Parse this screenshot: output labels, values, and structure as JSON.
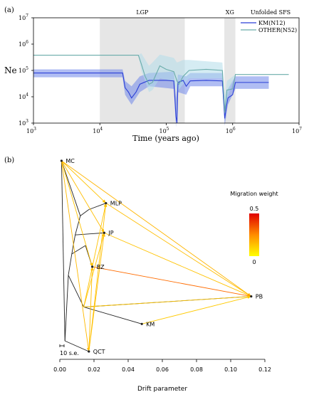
{
  "chart_data": [
    {
      "type": "line",
      "panel_label": "(a)",
      "xlabel": "Time (years ago)",
      "ylabel": "Ne",
      "x_scale": "log",
      "y_scale": "log",
      "xlim": [
        1000,
        10000000
      ],
      "ylim": [
        1000,
        10000000
      ],
      "x_ticks": [
        {
          "value": 1000,
          "base": "10",
          "exp": "3"
        },
        {
          "value": 10000,
          "base": "10",
          "exp": "4"
        },
        {
          "value": 100000,
          "base": "10",
          "exp": "5"
        },
        {
          "value": 1000000,
          "base": "10",
          "exp": "6"
        },
        {
          "value": 10000000,
          "base": "10",
          "exp": "7"
        }
      ],
      "y_ticks": [
        {
          "value": 1000,
          "base": "10",
          "exp": "3"
        },
        {
          "value": 10000,
          "base": "10",
          "exp": "4"
        },
        {
          "value": 100000,
          "base": "10",
          "exp": "5"
        },
        {
          "value": 1000000,
          "base": "10",
          "exp": "6"
        },
        {
          "value": 10000000,
          "base": "10",
          "exp": "7"
        }
      ],
      "annotation": "Unfolded SFS",
      "shaded_regions": [
        {
          "label": "LGP",
          "x": [
            10000,
            190000
          ]
        },
        {
          "label": "XG",
          "x": [
            750000,
            1100000
          ]
        }
      ],
      "legend_position": "top-right",
      "series": [
        {
          "name": "KM(N12)",
          "color": "#2b3fd6",
          "band_color": "#6f86ea",
          "points": [
            [
              1000,
              80000
            ],
            [
              22000,
              80000
            ],
            [
              24000,
              22000
            ],
            [
              27000,
              15000
            ],
            [
              30000,
              9000
            ],
            [
              35000,
              15000
            ],
            [
              40000,
              30000
            ],
            [
              55000,
              42000
            ],
            [
              100000,
              42000
            ],
            [
              130000,
              40000
            ],
            [
              140000,
              1800
            ],
            [
              145000,
              1000
            ],
            [
              150000,
              35000
            ],
            [
              180000,
              42000
            ],
            [
              200000,
              25000
            ],
            [
              230000,
              40000
            ],
            [
              400000,
              42000
            ],
            [
              700000,
              40000
            ],
            [
              760000,
              1500
            ],
            [
              800000,
              4000
            ],
            [
              850000,
              9000
            ],
            [
              1000000,
              12000
            ],
            [
              1100000,
              35000
            ],
            [
              3500000,
              35000
            ]
          ],
          "band_low": [
            [
              1000,
              55000
            ],
            [
              22000,
              55000
            ],
            [
              24000,
              12000
            ],
            [
              30000,
              5000
            ],
            [
              40000,
              15000
            ],
            [
              55000,
              25000
            ],
            [
              130000,
              20000
            ],
            [
              140000,
              700
            ],
            [
              150000,
              15000
            ],
            [
              200000,
              12000
            ],
            [
              230000,
              25000
            ],
            [
              700000,
              25000
            ],
            [
              760000,
              800
            ],
            [
              850000,
              5000
            ],
            [
              1100000,
              20000
            ],
            [
              3500000,
              20000
            ]
          ],
          "band_high": [
            [
              1000,
              110000
            ],
            [
              22000,
              110000
            ],
            [
              24000,
              40000
            ],
            [
              30000,
              25000
            ],
            [
              40000,
              60000
            ],
            [
              55000,
              80000
            ],
            [
              130000,
              90000
            ],
            [
              140000,
              9000
            ],
            [
              150000,
              70000
            ],
            [
              200000,
              60000
            ],
            [
              230000,
              80000
            ],
            [
              700000,
              80000
            ],
            [
              760000,
              5000
            ],
            [
              850000,
              20000
            ],
            [
              1100000,
              60000
            ],
            [
              3500000,
              60000
            ]
          ]
        },
        {
          "name": "OTHER(N52)",
          "color": "#6aacaa",
          "band_color": "#b3ddea",
          "points": [
            [
              1000,
              380000
            ],
            [
              38000,
              380000
            ],
            [
              42000,
              180000
            ],
            [
              48000,
              60000
            ],
            [
              55000,
              30000
            ],
            [
              62000,
              35000
            ],
            [
              70000,
              70000
            ],
            [
              80000,
              150000
            ],
            [
              100000,
              110000
            ],
            [
              130000,
              90000
            ],
            [
              145000,
              40000
            ],
            [
              155000,
              30000
            ],
            [
              180000,
              60000
            ],
            [
              220000,
              100000
            ],
            [
              400000,
              110000
            ],
            [
              700000,
              100000
            ],
            [
              760000,
              2500
            ],
            [
              820000,
              18000
            ],
            [
              1000000,
              20000
            ],
            [
              1100000,
              70000
            ],
            [
              7000000,
              70000
            ]
          ],
          "band_low": [
            [
              1000,
              380000
            ],
            [
              38000,
              380000
            ],
            [
              42000,
              100000
            ],
            [
              55000,
              15000
            ],
            [
              62000,
              18000
            ],
            [
              80000,
              50000
            ],
            [
              130000,
              40000
            ],
            [
              145000,
              15000
            ],
            [
              180000,
              30000
            ],
            [
              220000,
              50000
            ],
            [
              700000,
              50000
            ],
            [
              760000,
              1500
            ],
            [
              820000,
              8000
            ],
            [
              1100000,
              70000
            ],
            [
              7000000,
              70000
            ]
          ],
          "band_high": [
            [
              1000,
              380000
            ],
            [
              38000,
              380000
            ],
            [
              42000,
              450000
            ],
            [
              55000,
              150000
            ],
            [
              62000,
              200000
            ],
            [
              80000,
              400000
            ],
            [
              130000,
              300000
            ],
            [
              145000,
              200000
            ],
            [
              180000,
              250000
            ],
            [
              220000,
              250000
            ],
            [
              700000,
              200000
            ],
            [
              760000,
              10000
            ],
            [
              820000,
              40000
            ],
            [
              1100000,
              70000
            ],
            [
              7000000,
              70000
            ]
          ]
        }
      ]
    },
    {
      "type": "tree",
      "panel_label": "(b)",
      "xlabel": "Drift parameter",
      "xlim": [
        0,
        0.12
      ],
      "x_ticks": [
        "0.00",
        "0.02",
        "0.04",
        "0.06",
        "0.08",
        "0.10",
        "0.12"
      ],
      "scale_bar_label": "10 s.e.",
      "legend_title": "Migration weight",
      "legend_max": "0.5",
      "legend_min": "0",
      "leaves": [
        {
          "name": "MC",
          "x": 0.001,
          "y": 0
        },
        {
          "name": "MLP",
          "x": 0.027,
          "y": 2
        },
        {
          "name": "JP",
          "x": 0.026,
          "y": 3.4
        },
        {
          "name": "BZ",
          "x": 0.019,
          "y": 5
        },
        {
          "name": "PB",
          "x": 0.112,
          "y": 6.4
        },
        {
          "name": "KM",
          "x": 0.048,
          "y": 7.7
        },
        {
          "name": "QCT",
          "x": 0.017,
          "y": 9
        }
      ],
      "internal_nodes": [
        {
          "id": "root",
          "x": 0.001,
          "y": 0
        },
        {
          "id": "n1",
          "x": 0.003,
          "y": 8.5
        },
        {
          "id": "n2",
          "x": 0.005,
          "y": 5.4
        },
        {
          "id": "n3",
          "x": 0.007,
          "y": 4.4
        },
        {
          "id": "n4",
          "x": 0.009,
          "y": 3.5
        },
        {
          "id": "n5",
          "x": 0.012,
          "y": 2.6
        },
        {
          "id": "n6",
          "x": 0.017,
          "y": 2.3
        },
        {
          "id": "n7",
          "x": 0.015,
          "y": 4.0
        },
        {
          "id": "n8",
          "x": 0.014,
          "y": 6.9
        }
      ],
      "edges": [
        [
          "root",
          "n1"
        ],
        [
          "n1",
          "QCT"
        ],
        [
          "n1",
          "n2"
        ],
        [
          "n2",
          "n8"
        ],
        [
          "n8",
          "PB"
        ],
        [
          "n8",
          "KM"
        ],
        [
          "n2",
          "n3"
        ],
        [
          "n3",
          "n7"
        ],
        [
          "n7",
          "BZ"
        ],
        [
          "n3",
          "n4"
        ],
        [
          "n4",
          "JP"
        ],
        [
          "n4",
          "n5"
        ],
        [
          "n5",
          "n6"
        ],
        [
          "n6",
          "MLP"
        ],
        [
          "n5",
          "MC"
        ]
      ],
      "migrations": [
        {
          "from": "MC",
          "to": "MLP",
          "weight": 0.05
        },
        {
          "from": "MC",
          "to": "JP",
          "weight": 0.06
        },
        {
          "from": "MC",
          "to": "BZ",
          "weight": 0.05
        },
        {
          "from": "MC",
          "to": "PB",
          "weight": 0.08
        },
        {
          "from": "MC",
          "to": "QCT",
          "weight": 0.07
        },
        {
          "from": "MLP",
          "to": "PB",
          "weight": 0.06
        },
        {
          "from": "JP",
          "to": "PB",
          "weight": 0.05
        },
        {
          "from": "BZ",
          "to": "PB",
          "weight": 0.25
        },
        {
          "from": "n8",
          "to": "MLP",
          "weight": 0.05
        },
        {
          "from": "n8",
          "to": "JP",
          "weight": 0.05
        },
        {
          "from": "QCT",
          "to": "JP",
          "weight": 0.06
        },
        {
          "from": "QCT",
          "to": "BZ",
          "weight": 0.06
        },
        {
          "from": "QCT",
          "to": "MLP",
          "weight": 0.05
        },
        {
          "from": "KM",
          "to": "PB",
          "weight": 0.03
        },
        {
          "from": "n8",
          "to": "PB",
          "weight": 0.04
        }
      ]
    }
  ]
}
